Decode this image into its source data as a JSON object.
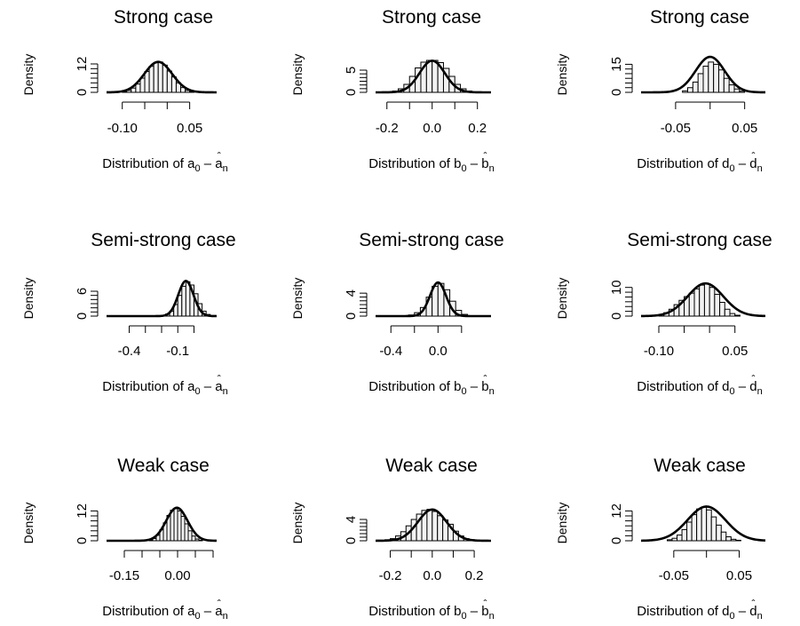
{
  "chart_data": [
    {
      "type": "histogram",
      "title": "Strong case",
      "ylabel": "Density",
      "xlabel": {
        "prefix": "Distribution of ",
        "symbol": "a",
        "sub0": "0",
        "minus": "–",
        "hat": "ˆ",
        "hatsym": "a",
        "subn": "n"
      },
      "xlim": [
        -0.135,
        0.11
      ],
      "ylim": [
        0,
        15
      ],
      "xticks": [
        -0.1,
        -0.05,
        0.0,
        0.05
      ],
      "xtick_labels": [
        "-0.10",
        "",
        "",
        "0.05"
      ],
      "yticks": [
        0,
        12
      ],
      "ytick_labels": [
        "0",
        "12"
      ],
      "bin_start": -0.1,
      "bin_width": 0.01,
      "values": [
        0.3,
        0.8,
        1.8,
        3.5,
        6.0,
        8.8,
        11.0,
        12.5,
        12.8,
        11.5,
        9.0,
        6.5,
        4.0,
        2.0,
        0.8,
        0.3
      ],
      "density": {
        "mean": -0.02,
        "sd": 0.031
      }
    },
    {
      "type": "histogram",
      "title": "Strong case",
      "ylabel": "Density",
      "xlabel": {
        "prefix": "Distribution of ",
        "symbol": "b",
        "sub0": "0",
        "minus": "–",
        "hat": "ˆ",
        "hatsym": "b",
        "subn": "n"
      },
      "xlim": [
        -0.25,
        0.26
      ],
      "ylim": [
        0,
        8
      ],
      "xticks": [
        -0.2,
        -0.1,
        0.0,
        0.1,
        0.2
      ],
      "xtick_labels": [
        "-0.2",
        "",
        "0.0",
        "",
        "0.2"
      ],
      "yticks": [
        0,
        5
      ],
      "ytick_labels": [
        "0",
        "5"
      ],
      "bin_start": -0.2,
      "bin_width": 0.025,
      "values": [
        0.1,
        0.3,
        0.8,
        1.8,
        3.6,
        5.5,
        6.8,
        7.2,
        7.2,
        6.7,
        5.4,
        3.6,
        1.8,
        0.8,
        0.3,
        0.1
      ],
      "density": {
        "mean": 0.0,
        "sd": 0.056
      }
    },
    {
      "type": "histogram",
      "title": "Strong case",
      "ylabel": "Density",
      "xlabel": {
        "prefix": "Distribution of ",
        "symbol": "d",
        "sub0": "0",
        "minus": "–",
        "hat": "ˆ",
        "hatsym": "d",
        "subn": "n"
      },
      "xlim": [
        -0.1,
        0.08
      ],
      "ylim": [
        0,
        19
      ],
      "xticks": [
        -0.05,
        0.0,
        0.05
      ],
      "xtick_labels": [
        "-0.05",
        "",
        "0.05"
      ],
      "yticks": [
        0,
        15
      ],
      "ytick_labels": [
        "0",
        "15"
      ],
      "bin_start": -0.04,
      "bin_width": 0.0075,
      "values": [
        0.8,
        2.5,
        5.5,
        10.0,
        14.0,
        16.2,
        15.0,
        12.0,
        7.5,
        4.0,
        1.8,
        0.6
      ],
      "density": {
        "mean": 0.0,
        "sd": 0.021
      }
    },
    {
      "type": "histogram",
      "title": "Semi-strong case",
      "ylabel": "Density",
      "xlabel": {
        "prefix": "Distribution of ",
        "symbol": "a",
        "sub0": "0",
        "minus": "–",
        "hat": "ˆ",
        "hatsym": "a",
        "subn": "n"
      },
      "xlim": [
        -0.54,
        0.14
      ],
      "ylim": [
        0,
        9
      ],
      "xticks": [
        -0.4,
        -0.3,
        -0.2,
        -0.1,
        0.0
      ],
      "xtick_labels": [
        "-0.4",
        "",
        "",
        "-0.1",
        ""
      ],
      "yticks": [
        0,
        6
      ],
      "ytick_labels": [
        "0",
        "6"
      ],
      "bin_start": -0.2,
      "bin_width": 0.025,
      "values": [
        0.2,
        0.5,
        1.2,
        2.8,
        5.0,
        7.2,
        8.3,
        7.5,
        5.4,
        3.0,
        1.2,
        0.4
      ],
      "density": {
        "mean": -0.05,
        "sd": 0.047
      }
    },
    {
      "type": "histogram",
      "title": "Semi-strong case",
      "ylabel": "Density",
      "xlabel": {
        "prefix": "Distribution of ",
        "symbol": "b",
        "sub0": "0",
        "minus": "–",
        "hat": "ˆ",
        "hatsym": "b",
        "subn": "n"
      },
      "xlim": [
        -0.53,
        0.45
      ],
      "ylim": [
        0,
        6.5
      ],
      "xticks": [
        -0.4,
        -0.2,
        0.0,
        0.2
      ],
      "xtick_labels": [
        "-0.4",
        "",
        "0.0",
        ""
      ],
      "yticks": [
        0,
        4
      ],
      "ytick_labels": [
        "0",
        "4"
      ],
      "bin_start": -0.25,
      "bin_width": 0.05,
      "values": [
        0.2,
        0.6,
        1.5,
        3.3,
        5.2,
        5.7,
        4.6,
        2.6,
        1.0,
        0.3
      ],
      "density": {
        "mean": 0.0,
        "sd": 0.068
      }
    },
    {
      "type": "histogram",
      "title": "Semi-strong case",
      "ylabel": "Density",
      "xlabel": {
        "prefix": "Distribution of ",
        "symbol": "d",
        "sub0": "0",
        "minus": "–",
        "hat": "ˆ",
        "hatsym": "d",
        "subn": "n"
      },
      "xlim": [
        -0.135,
        0.11
      ],
      "ylim": [
        0,
        13
      ],
      "xticks": [
        -0.1,
        -0.05,
        0.0,
        0.05
      ],
      "xtick_labels": [
        "-0.10",
        "",
        "",
        "0.05"
      ],
      "yticks": [
        0,
        10
      ],
      "ytick_labels": [
        "0",
        "10"
      ],
      "bin_start": -0.1,
      "bin_width": 0.01,
      "values": [
        0.5,
        1.2,
        2.4,
        4.0,
        5.5,
        6.8,
        8.0,
        9.5,
        10.8,
        11.2,
        10.0,
        7.6,
        4.8,
        2.4,
        0.9,
        0.3
      ],
      "density": {
        "mean": -0.008,
        "sd": 0.035
      }
    },
    {
      "type": "histogram",
      "title": "Weak case",
      "ylabel": "Density",
      "xlabel": {
        "prefix": "Distribution of ",
        "symbol": "a",
        "sub0": "0",
        "minus": "–",
        "hat": "ˆ",
        "hatsym": "a",
        "subn": "n"
      },
      "xlim": [
        -0.2,
        0.11
      ],
      "ylim": [
        0,
        15
      ],
      "xticks": [
        -0.15,
        -0.1,
        -0.05,
        0.0,
        0.05,
        0.1
      ],
      "xtick_labels": [
        "-0.15",
        "",
        "",
        "0.00",
        "",
        ""
      ],
      "yticks": [
        0,
        12
      ],
      "ytick_labels": [
        "0",
        "12"
      ],
      "bin_start": -0.08,
      "bin_width": 0.01,
      "values": [
        0.3,
        0.9,
        2.2,
        4.4,
        7.2,
        10.2,
        12.3,
        12.9,
        12.0,
        9.8,
        6.8,
        4.0,
        1.9,
        0.7,
        0.2
      ],
      "density": {
        "mean": -0.002,
        "sd": 0.03
      }
    },
    {
      "type": "histogram",
      "title": "Weak case",
      "ylabel": "Density",
      "xlabel": {
        "prefix": "Distribution of ",
        "symbol": "b",
        "sub0": "0",
        "minus": "–",
        "hat": "ˆ",
        "hatsym": "b",
        "subn": "n"
      },
      "xlim": [
        -0.27,
        0.28
      ],
      "ylim": [
        0,
        7
      ],
      "xticks": [
        -0.2,
        -0.1,
        0.0,
        0.1,
        0.2
      ],
      "xtick_labels": [
        "-0.2",
        "",
        "0.0",
        "",
        "0.2"
      ],
      "yticks": [
        0,
        4
      ],
      "ytick_labels": [
        "0",
        "4"
      ],
      "bin_start": -0.225,
      "bin_width": 0.025,
      "values": [
        0.2,
        0.4,
        0.9,
        1.7,
        2.8,
        4.0,
        5.0,
        5.7,
        5.9,
        5.5,
        4.7,
        3.9,
        3.1,
        1.8,
        0.9,
        0.4,
        0.2
      ],
      "density": {
        "mean": 0.0,
        "sd": 0.068
      }
    },
    {
      "type": "histogram",
      "title": "Weak case",
      "ylabel": "Density",
      "xlabel": {
        "prefix": "Distribution of ",
        "symbol": "d",
        "sub0": "0",
        "minus": "–",
        "hat": "ˆ",
        "hatsym": "d",
        "subn": "n"
      },
      "xlim": [
        -0.1,
        0.09
      ],
      "ylim": [
        0,
        15
      ],
      "xticks": [
        -0.05,
        0.0,
        0.05
      ],
      "xtick_labels": [
        "-0.05",
        "",
        "0.05"
      ],
      "yticks": [
        0,
        12
      ],
      "ytick_labels": [
        "0",
        "12"
      ],
      "bin_start": -0.06,
      "bin_width": 0.0075,
      "values": [
        0.4,
        1.0,
        2.3,
        4.5,
        7.5,
        10.5,
        12.8,
        13.5,
        12.4,
        9.6,
        6.3,
        3.5,
        1.6,
        0.6,
        0.2
      ],
      "density": {
        "mean": 0.0,
        "sd": 0.029
      }
    }
  ]
}
